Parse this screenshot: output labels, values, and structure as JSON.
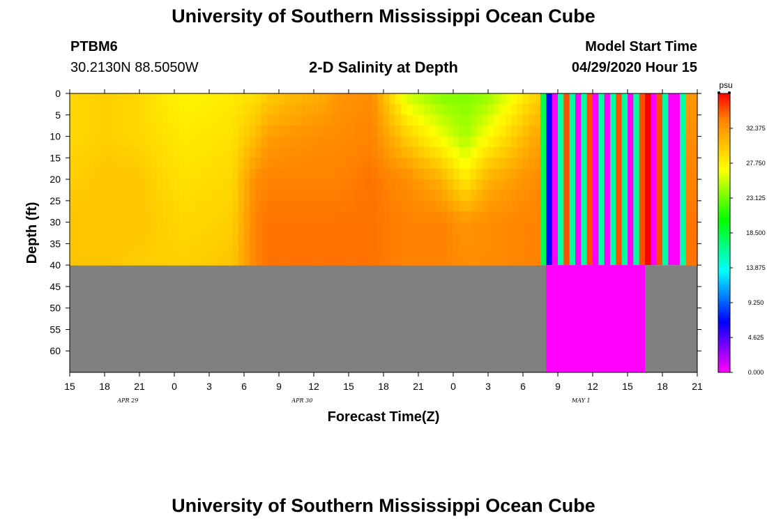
{
  "header": {
    "title": "University of Southern Mississippi Ocean Cube",
    "station_id": "PTBM6",
    "station_coords": "30.2130N 88.5050W",
    "plot_title": "2-D Salinity at Depth",
    "model_label": "Model Start Time",
    "model_time": "04/29/2020 Hour 15"
  },
  "footer": {
    "title": "University of Southern Mississippi Ocean Cube"
  },
  "colors": {
    "land": "#808080",
    "missing": "#ff00ff",
    "colorbar": [
      "#ff00ff",
      "#8000ff",
      "#0000ff",
      "#0080ff",
      "#00ffff",
      "#00ff80",
      "#00ff00",
      "#80ff00",
      "#ffff00",
      "#ffc000",
      "#ff8000",
      "#ff0000"
    ]
  },
  "chart_data": {
    "type": "heatmap",
    "title": "2-D Salinity at Depth",
    "xlabel": "Forecast Time(Z)",
    "ylabel": "Depth (ft)",
    "units": "psu",
    "x_tick_labels": [
      "15",
      "18",
      "21",
      "0",
      "3",
      "6",
      "9",
      "12",
      "15",
      "18",
      "21",
      "0",
      "3",
      "6",
      "9",
      "12",
      "15",
      "18",
      "21"
    ],
    "day_labels": [
      {
        "label": "APR 29",
        "hour_from_start": 5
      },
      {
        "label": "APR 30",
        "hour_from_start": 20
      },
      {
        "label": "MAY 1",
        "hour_from_start": 44
      }
    ],
    "xlim_hours_from_start": [
      0,
      54
    ],
    "y_tick_labels": [
      "0",
      "5",
      "10",
      "15",
      "20",
      "25",
      "30",
      "35",
      "40",
      "45",
      "50",
      "55",
      "60"
    ],
    "ylim": [
      0,
      65
    ],
    "water_bottom_depth": 40,
    "colorbar": {
      "min": 0.0,
      "max": 37.0,
      "tick_values": [
        0.0,
        4.625,
        9.25,
        13.875,
        18.5,
        23.125,
        27.75,
        32.375
      ],
      "tick_labels": [
        "0.000",
        "4.625",
        "9.250",
        "13.875",
        "18.500",
        "23.125",
        "27.750",
        "32.375"
      ]
    },
    "salinity_columns": {
      "hours_from_start": [
        0,
        3,
        6,
        8,
        10,
        14,
        16,
        17,
        19,
        22,
        23,
        26,
        29,
        32,
        34,
        36,
        40,
        54
      ],
      "depths": [
        0,
        10,
        20,
        30,
        40
      ],
      "values": [
        [
          29.0,
          29.0,
          29.5,
          30.0,
          30.0
        ],
        [
          29.5,
          29.5,
          30.0,
          30.0,
          30.0
        ],
        [
          29.0,
          29.0,
          30.0,
          30.0,
          29.5
        ],
        [
          28.0,
          28.5,
          29.0,
          29.5,
          29.5
        ],
        [
          27.5,
          28.0,
          28.5,
          29.0,
          29.5
        ],
        [
          28.0,
          28.5,
          29.0,
          29.5,
          30.0
        ],
        [
          28.5,
          30.5,
          33.0,
          33.5,
          33.5
        ],
        [
          29.5,
          32.0,
          33.5,
          34.0,
          34.0
        ],
        [
          30.5,
          32.5,
          33.5,
          34.0,
          34.0
        ],
        [
          31.5,
          33.0,
          33.5,
          34.0,
          34.0
        ],
        [
          32.5,
          33.0,
          33.5,
          34.0,
          34.0
        ],
        [
          33.0,
          33.5,
          34.0,
          34.0,
          34.0
        ],
        [
          25.5,
          29.5,
          33.0,
          33.5,
          33.5
        ],
        [
          23.5,
          26.5,
          31.0,
          33.5,
          33.5
        ],
        [
          23.5,
          24.5,
          28.0,
          32.5,
          33.0
        ],
        [
          24.0,
          27.0,
          31.0,
          33.0,
          33.0
        ],
        [
          29.0,
          31.5,
          33.0,
          33.5,
          33.5
        ],
        [
          32.5,
          33.0,
          33.5,
          34.0,
          34.0
        ]
      ]
    },
    "missing_band": {
      "start_hour_from_start": 41,
      "end_hour_from_start": 49.5,
      "depth_from": 40,
      "depth_to": 65,
      "value": 0.0
    },
    "stripes": {
      "start_hour_from_start": 40.5,
      "stripe_width_hours": 0.5,
      "values": [
        18.0,
        7.0,
        0.0,
        16.0,
        35.0,
        16.0,
        0.0,
        16.0,
        35.0,
        0.0,
        16.0,
        0.0,
        16.0,
        35.0,
        16.0,
        0.0,
        16.0,
        35.0,
        37.0,
        0.0,
        35.0,
        16.0,
        0.0,
        0.0,
        16.0
      ]
    }
  }
}
